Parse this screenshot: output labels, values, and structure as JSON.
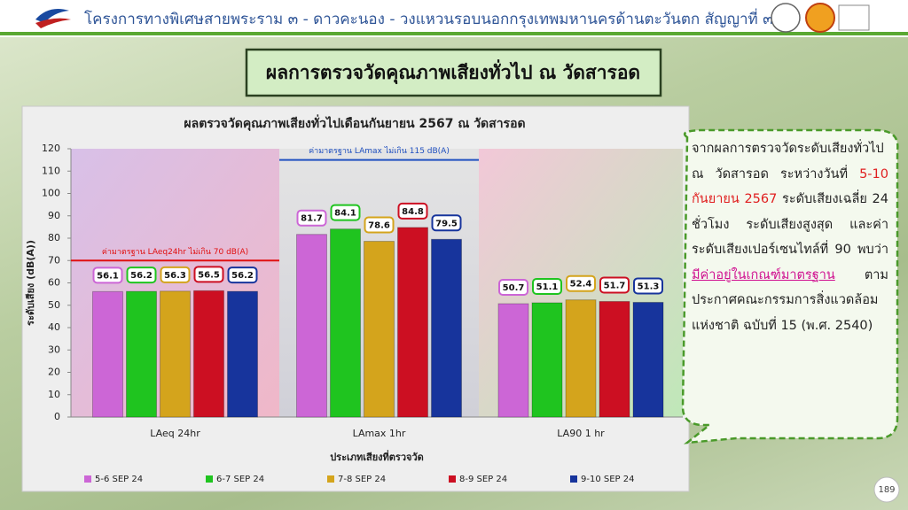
{
  "header": {
    "title": "โครงการทางพิเศษสายพระราม ๓ - ดาวคะนอง - วงแหวนรอบนอกกรุงเทพมหานครด้านตะวันตก สัญญาที่ ๓"
  },
  "slide_title": "ผลการตรวจวัดคุณภาพเสียงทั่วไป ณ วัดสารอด",
  "chart_data": {
    "type": "bar",
    "title": "ผลตรวจวัดคุณภาพเสียงทั่วไปเดือนกันยายน 2567 ณ วัดสารอด",
    "x_label": "ประเภทเสียงที่ตรวจวัด",
    "y_label": "ระดับเสียง (dB(A))",
    "categories": [
      "LAeq 24hr",
      "LAmax 1hr",
      "LA90 1 hr"
    ],
    "series": [
      {
        "name": "5-6 SEP 24",
        "color": "#cc66d6",
        "values": [
          56.1,
          81.7,
          50.7
        ]
      },
      {
        "name": "6-7 SEP 24",
        "color": "#1fc41f",
        "values": [
          56.2,
          84.1,
          51.1
        ]
      },
      {
        "name": "7-8 SEP 24",
        "color": "#d4a41c",
        "values": [
          56.3,
          78.6,
          52.4
        ]
      },
      {
        "name": "8-9 SEP 24",
        "color": "#cc0f22",
        "values": [
          56.5,
          84.8,
          51.7
        ]
      },
      {
        "name": "9-10 SEP 24",
        "color": "#17349c",
        "values": [
          56.2,
          79.5,
          51.3
        ]
      }
    ],
    "reference_lines": [
      {
        "label": "ค่ามาตรฐาน LAeq24hr ไม่เกิน 70 dB(A)",
        "value": 70,
        "color": "#e01010",
        "category": 0
      },
      {
        "label": "ค่ามาตรฐาน LAmax ไม่เกิน 115 dB(A)",
        "value": 115,
        "color": "#2050c0",
        "category": 1
      }
    ],
    "ylim": [
      0,
      120
    ],
    "yticks": [
      0,
      10,
      20,
      30,
      40,
      50,
      60,
      70,
      80,
      90,
      100,
      110,
      120
    ],
    "grid": false,
    "legend": "bottom"
  },
  "callout": {
    "parts": [
      {
        "text": "จากผลการตรวจวัดระดับเสียงทั่วไป ณ วัดสารอด ระหว่างวันที่ ",
        "style": "plain"
      },
      {
        "text": "5-10 กันยายน 2567",
        "style": "red"
      },
      {
        "text": " ระดับเสียงเฉลี่ย 24 ชั่วโมง ระดับเสียงสูงสุด และค่าระดับเสียงเปอร์เซนไทล์ที่ 90 พบว่า ",
        "style": "plain"
      },
      {
        "text": "มีค่าอยู่ในเกณฑ์มาตรฐาน",
        "style": "highlight"
      },
      {
        "text": " ตามประกาศคณะกรรมการสิ่งแวดล้อมแห่งชาติ ฉบับที่ 15 (พ.ศ. 2540)",
        "style": "plain"
      }
    ]
  },
  "page_number": "189"
}
